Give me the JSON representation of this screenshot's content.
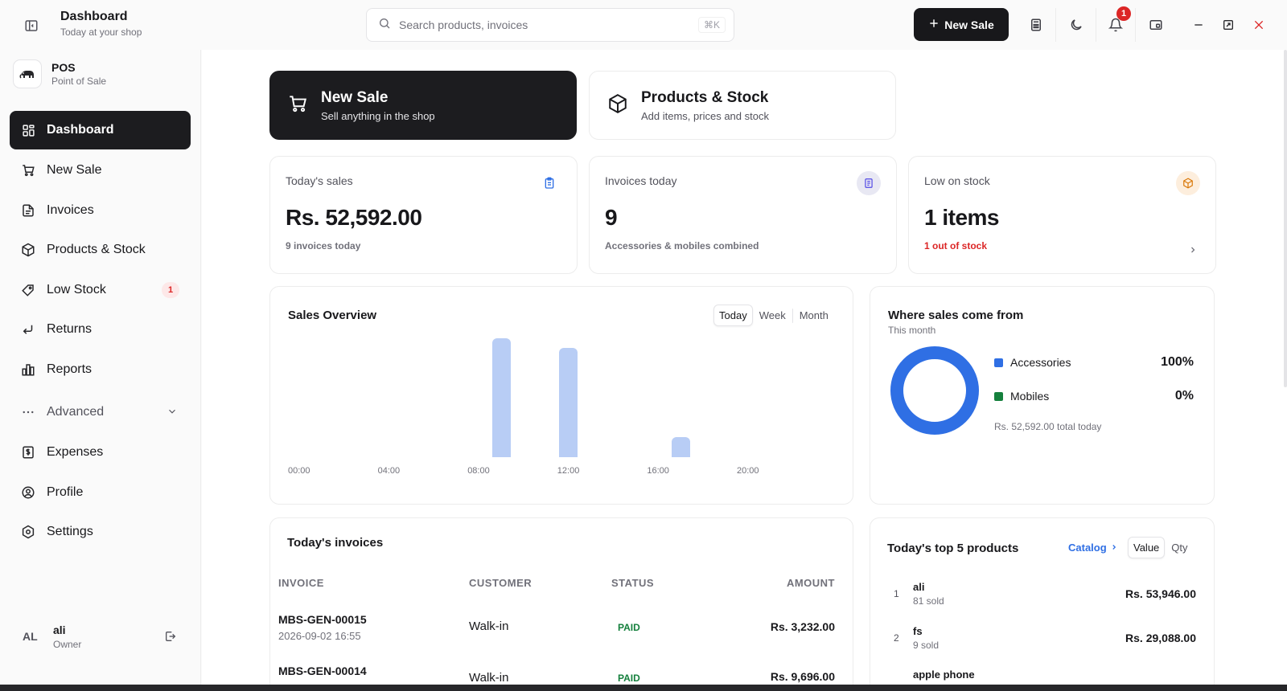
{
  "header": {
    "title": "Dashboard",
    "subtitle": "Today at your shop",
    "search_placeholder": "Search products, invoices",
    "search_shortcut": "⌘K",
    "new_sale_label": "New Sale",
    "notification_count": "1"
  },
  "brand": {
    "name": "POS",
    "tagline": "Point of Sale"
  },
  "sidebar": {
    "items": [
      {
        "label": "Dashboard",
        "icon": "dashboard-icon"
      },
      {
        "label": "New Sale",
        "icon": "cart-icon"
      },
      {
        "label": "Invoices",
        "icon": "file-icon"
      },
      {
        "label": "Products & Stock",
        "icon": "box-icon"
      },
      {
        "label": "Low Stock",
        "icon": "tag-icon",
        "badge": "1"
      },
      {
        "label": "Returns",
        "icon": "return-icon"
      },
      {
        "label": "Reports",
        "icon": "bar-chart-icon"
      },
      {
        "label": "Advanced",
        "icon": "more-icon"
      },
      {
        "label": "Expenses",
        "icon": "receipt-icon"
      },
      {
        "label": "Profile",
        "icon": "user-circle-icon"
      },
      {
        "label": "Settings",
        "icon": "settings-icon"
      }
    ]
  },
  "user": {
    "initials": "AL",
    "name": "ali",
    "role": "Owner"
  },
  "quick_actions": [
    {
      "title": "New Sale",
      "subtitle": "Sell anything in the shop"
    },
    {
      "title": "Products & Stock",
      "subtitle": "Add items, prices and stock"
    }
  ],
  "stats": [
    {
      "label": "Today's sales",
      "value": "Rs. 52,592.00",
      "sub": "9 invoices today"
    },
    {
      "label": "Invoices today",
      "value": "9",
      "sub": "Accessories & mobiles combined"
    },
    {
      "label": "Low on stock",
      "value": "1 items",
      "sub": "1 out of stock"
    }
  ],
  "sales_overview": {
    "title": "Sales Overview",
    "tabs": [
      "Today",
      "Week",
      "Month"
    ]
  },
  "chart_data": {
    "type": "bar",
    "x_ticks": [
      "00:00",
      "04:00",
      "08:00",
      "12:00",
      "16:00",
      "20:00"
    ],
    "x": [
      9,
      12,
      17
    ],
    "values": [
      100,
      92,
      17
    ],
    "ylim": [
      0,
      100
    ],
    "grid": false,
    "color": "#b8cdf5"
  },
  "sources": {
    "title": "Where sales come from",
    "subtitle": "This month",
    "items": [
      {
        "name": "Accessories",
        "pct": "100%",
        "value": 100,
        "color": "#2f6fe4"
      },
      {
        "name": "Mobiles",
        "pct": "0%",
        "value": 0,
        "color": "#15803d"
      }
    ],
    "total": "Rs. 52,592.00 total today"
  },
  "invoices": {
    "title": "Today's invoices",
    "columns": [
      "INVOICE",
      "CUSTOMER",
      "STATUS",
      "AMOUNT"
    ],
    "rows": [
      {
        "id": "MBS-GEN-00015",
        "date": "2026-09-02 16:55",
        "customer": "Walk-in",
        "status": "PAID",
        "amount": "Rs. 3,232.00"
      },
      {
        "id": "MBS-GEN-00014",
        "date": "",
        "customer": "Walk-in",
        "status": "PAID",
        "amount": "Rs. 9,696.00"
      }
    ]
  },
  "top_products": {
    "title": "Today's top 5 products",
    "catalog_link": "Catalog",
    "tabs": [
      "Value",
      "Qty"
    ],
    "rows": [
      {
        "rank": "1",
        "name": "ali",
        "sold": "81 sold",
        "value": "Rs. 53,946.00"
      },
      {
        "rank": "2",
        "name": "fs",
        "sold": "9 sold",
        "value": "Rs. 29,088.00"
      },
      {
        "rank": "3",
        "name": "apple phone",
        "sold": "",
        "value": ""
      }
    ]
  }
}
